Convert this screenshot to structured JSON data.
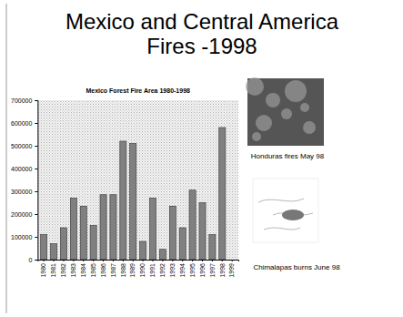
{
  "slide": {
    "title": "Mexico and Central America Fires -1998",
    "images": [
      {
        "caption": "Honduras fires May 98"
      },
      {
        "caption": "Chimalapas burns June 98"
      }
    ]
  },
  "chart_data": {
    "type": "bar",
    "title": "Mexico Forest Fire Area 1980-1998",
    "categories": [
      "1980",
      "1981",
      "1982",
      "1983",
      "1984",
      "1985",
      "1986",
      "1987",
      "1988",
      "1989",
      "1990",
      "1991",
      "1992",
      "1993",
      "1994",
      "1995",
      "1996",
      "1997",
      "1998",
      "1999"
    ],
    "values": [
      110000,
      70000,
      140000,
      270000,
      235000,
      150000,
      285000,
      285000,
      520000,
      510000,
      80000,
      270000,
      45000,
      235000,
      140000,
      305000,
      250000,
      110000,
      580000,
      null
    ],
    "color": "#808080",
    "ylim": [
      0,
      700000
    ],
    "yticks": [
      0,
      100000,
      200000,
      300000,
      400000,
      500000,
      600000,
      700000
    ],
    "grid": false
  }
}
